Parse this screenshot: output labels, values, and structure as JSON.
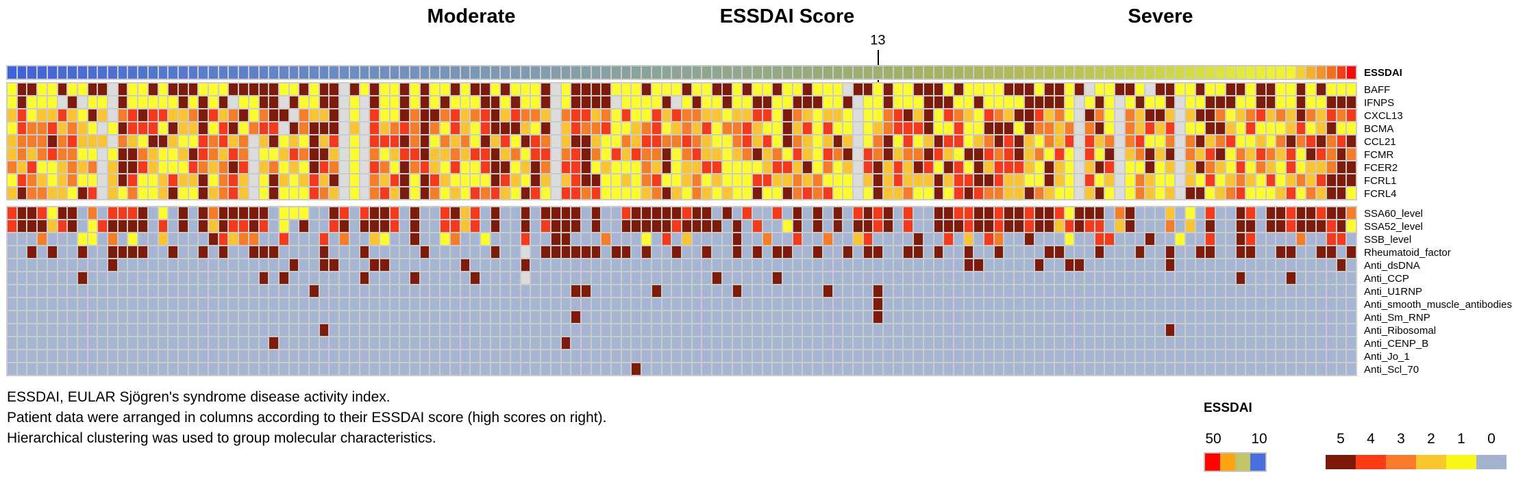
{
  "header": {
    "left_label": "Moderate",
    "center_label": "ESSDAI Score",
    "right_label": "Severe"
  },
  "essdai_tick": {
    "label": "13",
    "column_index": 86.5
  },
  "caption": {
    "lines": [
      "ESSDAI, EULAR Sjögren's syndrome disease activity index.",
      "Patient data were arranged in columns according to their ESSDAI score (high scores on right).",
      "Hierarchical clustering was used to group molecular characteristics."
    ]
  },
  "legend_essdai": {
    "title": "ESSDAI",
    "left_value": "50",
    "right_value": "10",
    "colors": [
      "#fe0400",
      "#fca414",
      "#c2c566",
      "#4a6edb"
    ]
  },
  "legend_values": {
    "labels": [
      "5",
      "4",
      "3",
      "2",
      "1",
      "0"
    ],
    "colors": [
      "#7c1a0a",
      "#fb3c14",
      "#f97a2b",
      "#fac62e",
      "#f8f717",
      "#a3b2d0"
    ]
  },
  "chart_data": {
    "type": "heatmap",
    "columns": 134,
    "value_colors": {
      "0": "#a6b5d3",
      "1": "#fbfb30",
      "2": "#f9c332",
      "3": "#f57d2a",
      "4": "#f43a1c",
      "5": "#7d1b0c",
      "M": "#dcdcdc"
    },
    "grid_color": "#cbcbcb",
    "essdai_row": {
      "label": "ESSDAI",
      "gradient_stops": [
        {
          "t": 0.0,
          "c": "#3f63d9"
        },
        {
          "t": 0.12,
          "c": "#5578cf"
        },
        {
          "t": 0.25,
          "c": "#6c8cc3"
        },
        {
          "t": 0.38,
          "c": "#809bb2"
        },
        {
          "t": 0.48,
          "c": "#8aa49a"
        },
        {
          "t": 0.58,
          "c": "#95aa80"
        },
        {
          "t": 0.68,
          "c": "#a4b264"
        },
        {
          "t": 0.78,
          "c": "#b7bf53"
        },
        {
          "t": 0.87,
          "c": "#cfd844"
        },
        {
          "t": 0.93,
          "c": "#e9ef35"
        },
        {
          "t": 0.955,
          "c": "#f4f42c"
        },
        {
          "t": 0.965,
          "c": "#f6c133"
        },
        {
          "t": 0.975,
          "c": "#f59d27"
        },
        {
          "t": 0.985,
          "c": "#f2701d"
        },
        {
          "t": 1.0,
          "c": "#fa0909"
        }
      ]
    },
    "panels": [
      {
        "name": "molecular-characteristics",
        "rows": [
          {
            "label": "BAFF",
            "cells": "1551151155M5115155511155555115155M51511515115155151115M1555511151115115515115115111SM55151155515111155515™515M11551M55115115515511515"
          },
          {
            "label": "IFNPS",
            "cells": "15111M5M11M51111151515M1155M51155M1M511515151115515115M15555M11115M15115115511555115M115111555115111155551M151M15115M11555115511511555"
          },
          {
            "label": "CXCL13",
            "cells": "2412242152M34544223542351355M3225M1M4115355342345243 32M344231411424332212244153212 21M1134 52514321432554231M531M32552M25531234232532434"
          },
          {
            "label": "BCMA",
            "cells": "143342321M15444152251451344M53555M2M42343531421455 5215M243341123412324133421152414 11M1234445114115551533 23M351M32424M11552141112412511"
          },
          {
            "label": "CCL21",
            "cells": "2333534222M3215521143423M25121524M1M44453513231524 1543M255211324433432113424153212 52M13 5141254412354521324M423M34113M35234112135345345"
          },
          {
            "label": "FCMR",
            "cells": "232343311M15532112543243M11243552M1M31244522324452 3144M345314243351342212352314214 35M4352335421554345231 41M415M23525M32451324324154353"
          },
          {
            "label": "FCER2",
            "cells": "324112323M25542111432354M23121543M1M43153421411455 1253M445121113251224411112442513 12M4524254154152444215 21M254M11512M25321413214122355"
          },
          {
            "label": "FCRL1",
            "cells": "143212311M25411242251342M15212425M1M32451542111154 2152M245511213411231211144223231 11M2524222524455422115 21M412M13211M21412321412324555"
          },
          {
            "label": "FCRL4",
            "cells": "253322154M21311251152342M15111432M1M34251531214342 1541M443411112352132121151153434 11M152231151454332253 211M251M13212M55123411124132551"
          }
        ]
      },
      {
        "name": "autoantibodies",
        "rows": [
          {
            "label": "SSA60_level",
            "cells": "4554155030444501050535555501110054045540500452405005055550500455555455050400405050504545040055445545545541555035000201040054055455 4553"
          },
          {
            "label": "SSA52_level",
            "cells": "4555245014555504050525445401050045055540500442405005045550500555554555505040015050505545040055545545545524544025000302050055055455 5451"
          },
          {
            "label": "SSB_level",
            "cells": "0003000110301002000054233004000403002100500130010004005500030001040200005003004003002400005004020430050001004400050010040054000030 0440"
          },
          {
            "label": "Rheumatoid_factor",
            "cells": "005050050055550050050500555000050005000005000000500M0555555055050050050050505500500505500550500500500005500050005005005500550055005505"
          },
          {
            "label": "Anti_dsDNA",
            "marks": {
              "10": "5",
              "28": "5",
              "31": "5",
              "32": "5",
              "36": "5",
              "37": "5",
              "45": "5",
              "51": "5",
              "95": "5",
              "96": "5",
              "102": "5",
              "105": "5",
              "106": "5",
              "115": "5",
              "132": "5"
            }
          },
          {
            "label": "Anti_CCP",
            "marks": {
              "7": "5",
              "25": "5",
              "27": "5",
              "35": "5",
              "40": "5",
              "46": "5",
              "51": "M",
              "70": "5",
              "76": "5",
              "122": "5",
              "127": "5"
            }
          },
          {
            "label": "Anti_U1RNP",
            "marks": {
              "30": "5",
              "56": "5",
              "57": "5",
              "64": "5",
              "72": "5",
              "81": "5",
              "86": "5"
            }
          },
          {
            "label": "Anti_smooth_muscle_antibodies",
            "marks": {
              "86": "5"
            }
          },
          {
            "label": "Anti_Sm_RNP",
            "marks": {
              "56": "5",
              "86": "5"
            }
          },
          {
            "label": "Anti_Ribosomal",
            "marks": {
              "31": "5",
              "115": "5"
            }
          },
          {
            "label": "Anti_CENP_B",
            "marks": {
              "26": "5",
              "55": "5"
            }
          },
          {
            "label": "Anti_Jo_1",
            "marks": {}
          },
          {
            "label": "Anti_Scl_70",
            "marks": {
              "62": "5"
            }
          }
        ]
      }
    ]
  }
}
